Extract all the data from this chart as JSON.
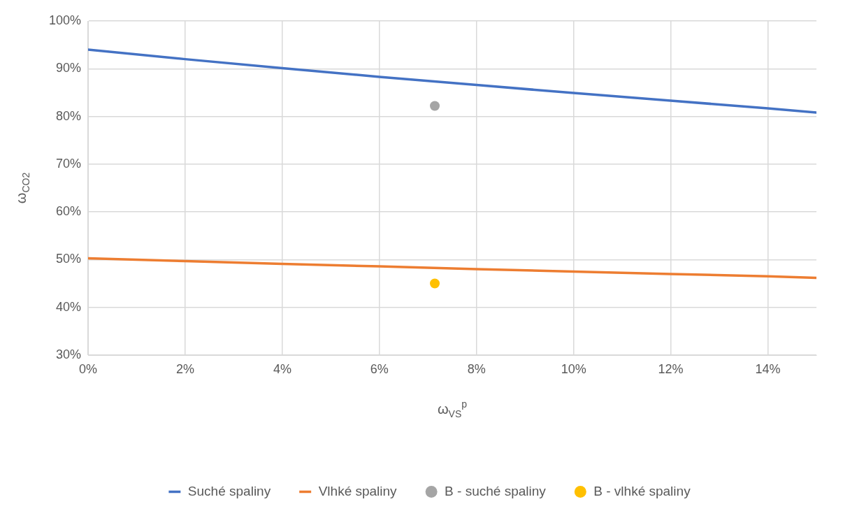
{
  "chart_data": {
    "type": "line",
    "xlabel": "ω$_{VS}$$^{p}$",
    "ylabel": "ω$_{CO2}$",
    "xlim": [
      0,
      15
    ],
    "xticks": [
      {
        "value": 0,
        "label": "0%"
      },
      {
        "value": 2,
        "label": "2%"
      },
      {
        "value": 4,
        "label": "4%"
      },
      {
        "value": 6,
        "label": "6%"
      },
      {
        "value": 8,
        "label": "8%"
      },
      {
        "value": 10,
        "label": "10%"
      },
      {
        "value": 12,
        "label": "12%"
      },
      {
        "value": 14,
        "label": "14%"
      }
    ],
    "ylim": [
      30,
      100
    ],
    "yticks": [
      {
        "value": 30,
        "label": "30%"
      },
      {
        "value": 40,
        "label": "40%"
      },
      {
        "value": 50,
        "label": "50%"
      },
      {
        "value": 60,
        "label": "60%"
      },
      {
        "value": 70,
        "label": "70%"
      },
      {
        "value": 80,
        "label": "80%"
      },
      {
        "value": 90,
        "label": "90%"
      },
      {
        "value": 100,
        "label": "100%"
      }
    ],
    "grid": true,
    "legend": "bottom",
    "series": [
      {
        "name": "Suché spaliny",
        "marker": "none",
        "color": "#4472c4",
        "x": [
          0,
          2,
          4,
          6,
          8,
          10,
          12,
          14,
          15
        ],
        "values": [
          94.0,
          92.0,
          90.1,
          88.3,
          86.6,
          84.9,
          83.3,
          81.7,
          80.8
        ]
      },
      {
        "name": "Vlhké spaliny",
        "marker": "none",
        "color": "#ed7d31",
        "x": [
          0,
          2,
          4,
          6,
          8,
          10,
          12,
          14,
          15
        ],
        "values": [
          50.3,
          49.7,
          49.1,
          48.6,
          48.0,
          47.5,
          47.0,
          46.5,
          46.2
        ]
      },
      {
        "name": "B - suché spaliny",
        "type": "scatter",
        "marker": "circle",
        "color": "#a5a5a5",
        "x": [
          7.14
        ],
        "values": [
          82.2
        ]
      },
      {
        "name": "B - vlhké spaliny",
        "type": "scatter",
        "marker": "circle",
        "color": "#ffc000",
        "x": [
          7.14
        ],
        "values": [
          45.0
        ]
      }
    ]
  }
}
